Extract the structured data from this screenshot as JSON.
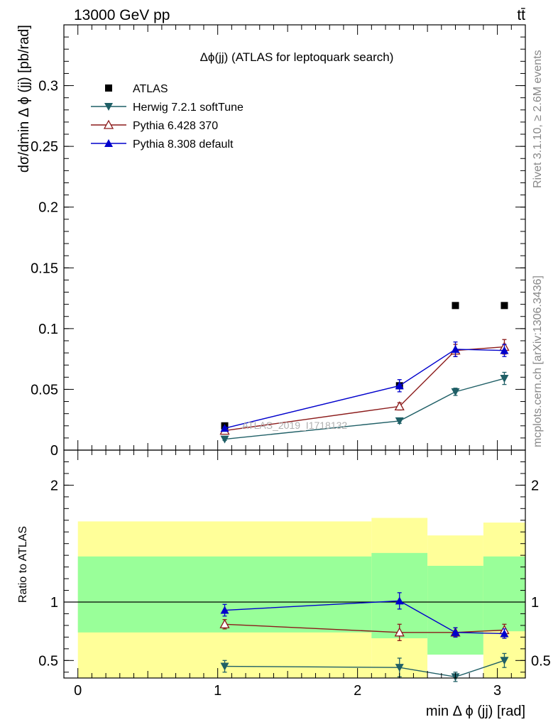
{
  "header": {
    "energy_label": "13000 GeV pp",
    "process_label": "tt̄"
  },
  "side_labels": {
    "rivet": "Rivet 3.1.10, ≥ 2.6M events",
    "mcplots": "mcplots.cern.ch [arXiv:1306.3436]"
  },
  "chart_data": [
    {
      "type": "scatter",
      "title": "Δϕ(jj) (ATLAS for leptoquark search)",
      "watermark": "ATLAS_2019_I1718132",
      "xlabel": "min Δ ϕ (jj) [rad]",
      "ylabel": "dσ/dmin Δ ϕ (jj) [pb/rad]",
      "xlim": [
        -0.1,
        3.2
      ],
      "ylim": [
        0,
        0.35
      ],
      "yticks": [
        0,
        0.05,
        0.1,
        0.15,
        0.2,
        0.25,
        0.3
      ],
      "ytick_labels": [
        "0",
        "0.05",
        "0.1",
        "0.15",
        "0.2",
        "0.25",
        "0.3"
      ],
      "legend_position": "top-left",
      "series": [
        {
          "name": "ATLAS",
          "color": "#000000",
          "marker": "square",
          "line": false,
          "x": [
            1.05,
            2.3,
            2.7,
            3.05
          ],
          "y": [
            0.02,
            0.053,
            0.119,
            0.119
          ],
          "err": [
            0,
            0,
            0,
            0
          ]
        },
        {
          "name": "Herwig 7.2.1 softTune",
          "color": "#1f5f66",
          "marker": "triangle-down",
          "x": [
            1.05,
            2.3,
            2.7,
            3.05
          ],
          "y": [
            0.009,
            0.024,
            0.048,
            0.059
          ],
          "err": [
            0.001,
            0.002,
            0.003,
            0.005
          ]
        },
        {
          "name": "Pythia 6.428 370",
          "color": "#8b1a1a",
          "marker": "triangle-up-open",
          "x": [
            1.05,
            2.3,
            2.7,
            3.05
          ],
          "y": [
            0.016,
            0.036,
            0.082,
            0.085
          ],
          "err": [
            0.001,
            0.003,
            0.005,
            0.006
          ]
        },
        {
          "name": "Pythia 8.308 default",
          "color": "#0000cc",
          "marker": "triangle-up",
          "x": [
            1.05,
            2.3,
            2.7,
            3.05
          ],
          "y": [
            0.018,
            0.053,
            0.083,
            0.082
          ],
          "err": [
            0.001,
            0.005,
            0.006,
            0.005
          ]
        }
      ]
    },
    {
      "type": "scatter",
      "xlabel": "min Δ ϕ (jj) [rad]",
      "ylabel": "Ratio to ATLAS",
      "xlim": [
        -0.1,
        3.2
      ],
      "ylim": [
        0.35,
        2.3
      ],
      "xticks": [
        0,
        1,
        2,
        3
      ],
      "xtick_labels": [
        "0",
        "1",
        "2",
        "3"
      ],
      "yticks": [
        0.5,
        1,
        2
      ],
      "ytick_labels": [
        "0.5",
        "1",
        "2"
      ],
      "reference_line": 1,
      "bands": [
        {
          "x0": 0.0,
          "x1": 2.1,
          "outer": [
            0.35,
            1.69
          ],
          "inner": [
            0.74,
            1.39
          ]
        },
        {
          "x0": 2.1,
          "x1": 2.5,
          "outer": [
            0.35,
            1.72
          ],
          "inner": [
            0.69,
            1.42
          ]
        },
        {
          "x0": 2.5,
          "x1": 2.9,
          "outer_lower": [
            0.35,
            0.55
          ],
          "outer_upper": [
            0.81,
            1.57
          ],
          "inner": [
            0.55,
            1.31
          ]
        },
        {
          "x0": 2.9,
          "x1": 3.2,
          "outer": [
            0.35,
            1.68
          ],
          "inner": [
            0.75,
            1.39
          ]
        }
      ],
      "series": [
        {
          "name": "Herwig 7.2.1 softTune",
          "color": "#1f5f66",
          "marker": "triangle-down",
          "x": [
            1.05,
            2.3,
            2.7,
            3.05
          ],
          "y": [
            0.45,
            0.44,
            0.36,
            0.5
          ],
          "err": [
            0.05,
            0.08,
            0.04,
            0.06
          ]
        },
        {
          "name": "Pythia 6.428 370",
          "color": "#8b1a1a",
          "marker": "triangle-up-open",
          "x": [
            1.05,
            2.3,
            2.7,
            3.05
          ],
          "y": [
            0.81,
            0.74,
            0.74,
            0.76
          ],
          "err": [
            0.04,
            0.07,
            0.04,
            0.05
          ]
        },
        {
          "name": "Pythia 8.308 default",
          "color": "#0000cc",
          "marker": "triangle-up",
          "x": [
            1.05,
            2.3,
            2.7,
            3.05
          ],
          "y": [
            0.93,
            1.01,
            0.74,
            0.73
          ],
          "err": [
            0.05,
            0.07,
            0.04,
            0.04
          ]
        }
      ]
    }
  ]
}
